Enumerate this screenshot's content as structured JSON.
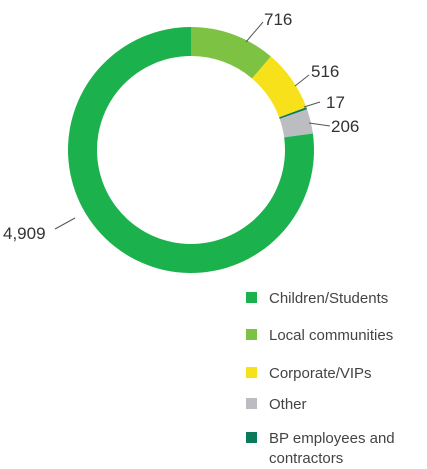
{
  "chart_data": {
    "type": "pie",
    "style": "donut",
    "categories": [
      "Children/Students",
      "Local communities",
      "Corporate/VIPs",
      "Other",
      "BP employees and contractors"
    ],
    "values": [
      4909,
      716,
      516,
      206,
      17
    ],
    "value_labels": [
      "4,909",
      "716",
      "516",
      "206",
      "17"
    ],
    "colors": [
      "#1bb14c",
      "#7dc242",
      "#f7e11b",
      "#bcbdc0",
      "#0b7a5c"
    ],
    "slice_order": [
      "Children/Students",
      "Local communities",
      "Corporate/VIPs",
      "BP employees and contractors",
      "Other"
    ],
    "legend_placement": "bottom-right"
  }
}
